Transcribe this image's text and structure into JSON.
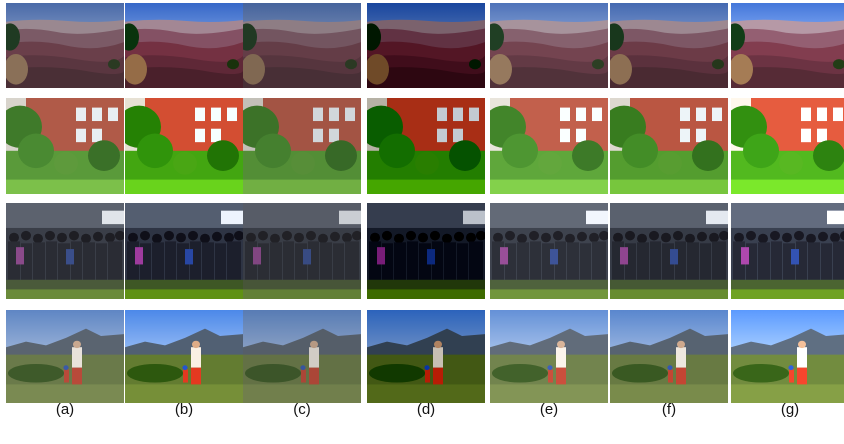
{
  "column_labels": [
    "(a)",
    "(b)",
    "(c)",
    "(d)",
    "(e)",
    "(f)",
    "(g)"
  ],
  "rows": [
    {
      "scene": "canyon-landscape"
    },
    {
      "scene": "brick-building-garden"
    },
    {
      "scene": "street-crowd"
    },
    {
      "scene": "mountain-valley-with-person"
    }
  ],
  "column_tones": [
    {
      "brightness": 1.0,
      "contrast": 1.0,
      "saturate": 1.0,
      "hue": 0
    },
    {
      "brightness": 1.0,
      "contrast": 1.15,
      "saturate": 1.35,
      "hue": 0
    },
    {
      "brightness": 0.92,
      "contrast": 0.95,
      "saturate": 1.05,
      "hue": 0
    },
    {
      "brightness": 0.78,
      "contrast": 1.3,
      "saturate": 1.4,
      "hue": 0
    },
    {
      "brightness": 1.08,
      "contrast": 1.0,
      "saturate": 1.05,
      "hue": 0
    },
    {
      "brightness": 1.0,
      "contrast": 1.05,
      "saturate": 1.1,
      "hue": 0
    },
    {
      "brightness": 1.12,
      "contrast": 1.1,
      "saturate": 1.3,
      "hue": 0
    }
  ]
}
